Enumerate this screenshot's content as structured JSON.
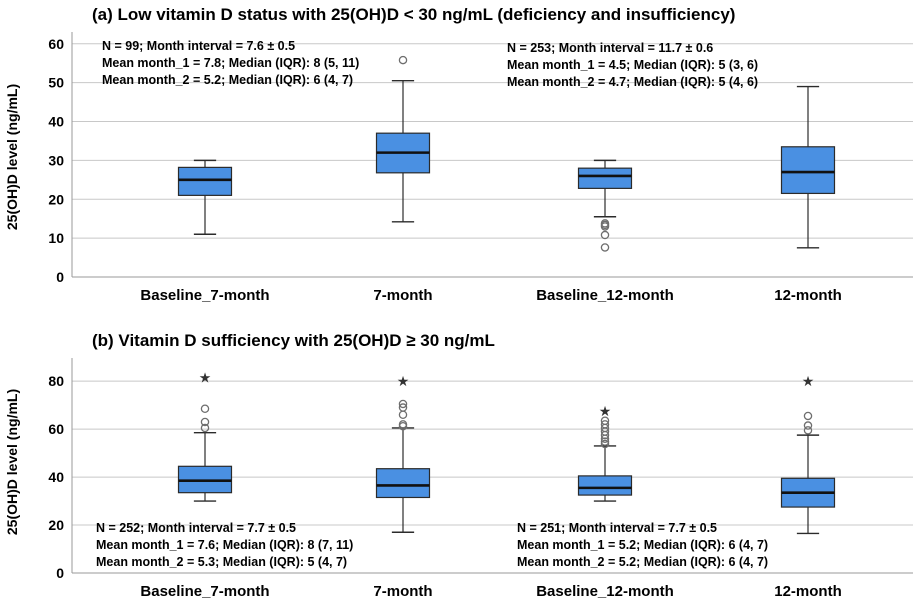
{
  "colors": {
    "box_fill": "#4a90e2",
    "box_stroke": "#2b2b2b",
    "grid": "#c8c8c8",
    "median": "#111111"
  },
  "chart_data": [
    {
      "type": "boxplot",
      "title": "(a)  Low vitamin D status with 25(OH)D < 30 ng/mL (deficiency and insufficiency)",
      "ylabel": "25(OH)D level (ng/mL)",
      "xlabel": "",
      "ylim": [
        0,
        62
      ],
      "yticks": [
        0,
        10,
        20,
        30,
        40,
        50,
        60
      ],
      "grid": true,
      "categories": [
        "Baseline_7-month",
        "7-month",
        "Baseline_12-month",
        "12-month"
      ],
      "boxes": [
        {
          "min": 11,
          "q1": 21,
          "median": 25,
          "q3": 28.2,
          "max": 30,
          "outliers": [],
          "extremes": []
        },
        {
          "min": 14.2,
          "q1": 26.8,
          "median": 32,
          "q3": 37,
          "max": 50.5,
          "outliers": [
            55.8
          ],
          "extremes": []
        },
        {
          "min": 15.5,
          "q1": 22.8,
          "median": 26,
          "q3": 28,
          "max": 30,
          "outliers": [
            13.8,
            13.4,
            13,
            10.8,
            7.6
          ],
          "extremes": []
        },
        {
          "min": 7.5,
          "q1": 21.5,
          "median": 27,
          "q3": 33.5,
          "max": 49,
          "outliers": [],
          "extremes": []
        }
      ],
      "annotations": [
        {
          "group": "left",
          "lines": [
            "N = 99; Month interval = 7.6 ± 0.5",
            "Mean month_1 = 7.8; Median (IQR): 8 (5, 11)",
            "Mean month_2 = 5.2; Median (IQR): 6 (4, 7)"
          ]
        },
        {
          "group": "right",
          "lines": [
            "N = 253; Month interval = 11.7 ± 0.6",
            "Mean month_1 = 4.5; Median (IQR): 5 (3, 6)",
            "Mean month_2 = 4.7; Median (IQR): 5 (4, 6)"
          ]
        }
      ]
    },
    {
      "type": "boxplot",
      "title": "(b)  Vitamin D sufficiency with 25(OH)D ≥ 30 ng/mL",
      "ylabel": "25(OH)D level (ng/mL)",
      "xlabel": "",
      "ylim": [
        0,
        88
      ],
      "yticks": [
        0,
        20,
        40,
        60,
        80
      ],
      "grid": true,
      "categories": [
        "Baseline_7-month",
        "7-month",
        "Baseline_12-month",
        "12-month"
      ],
      "boxes": [
        {
          "min": 30,
          "q1": 33.5,
          "median": 38.5,
          "q3": 44.5,
          "max": 58.5,
          "outliers": [
            68.5,
            63,
            60.5
          ],
          "extremes": [
            81.5
          ]
        },
        {
          "min": 17,
          "q1": 31.5,
          "median": 36.5,
          "q3": 43.5,
          "max": 60.5,
          "outliers": [
            70.5,
            69,
            66,
            62,
            61.2
          ],
          "extremes": [
            80
          ]
        },
        {
          "min": 30,
          "q1": 32.5,
          "median": 35.5,
          "q3": 40.5,
          "max": 53,
          "outliers": [
            63.5,
            62,
            60.5,
            59,
            57.5,
            56,
            54.8,
            53.8
          ],
          "extremes": [
            67.5
          ]
        },
        {
          "min": 16.5,
          "q1": 27.5,
          "median": 33.5,
          "q3": 39.5,
          "max": 57.5,
          "outliers": [
            65.5,
            61.5,
            59.5
          ],
          "extremes": [
            80
          ]
        }
      ],
      "annotations": [
        {
          "group": "left",
          "lines": [
            "N = 252; Month interval = 7.7 ± 0.5",
            "Mean month_1 = 7.6; Median (IQR): 8 (7, 11)",
            "Mean month_2 = 5.3; Median (IQR): 5 (4, 7)"
          ]
        },
        {
          "group": "right",
          "lines": [
            "N = 251; Month interval = 7.7 ± 0.5",
            "Mean month_1 = 5.2; Median (IQR): 6 (4, 7)",
            "Mean month_2 = 5.2; Median (IQR): 6 (4, 7)"
          ]
        }
      ]
    }
  ]
}
